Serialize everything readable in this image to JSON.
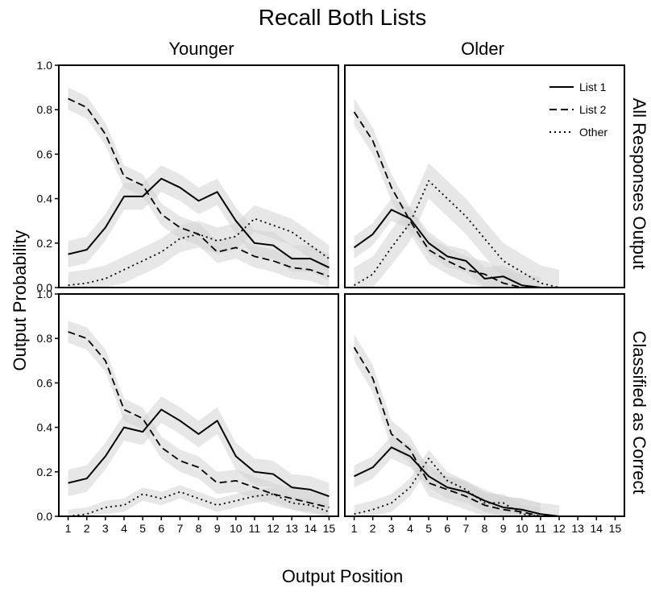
{
  "title": "Recall Both Lists",
  "xlabel": "Output Position",
  "ylabel": "Output Probability",
  "columns": [
    "Younger",
    "Older"
  ],
  "rows": [
    "All Responses Output",
    "Classified as Correct"
  ],
  "legend": {
    "placement": "top-right",
    "items": [
      {
        "name": "List 1",
        "dash": "solid"
      },
      {
        "name": "List 2",
        "dash": "dashed"
      },
      {
        "name": "Other",
        "dash": "dotted"
      }
    ]
  },
  "colors": {
    "line": "#000000",
    "band": "#d3d3d3"
  },
  "chart_data": {
    "type": "line",
    "x": [
      1,
      2,
      3,
      4,
      5,
      6,
      7,
      8,
      9,
      10,
      11,
      12,
      13,
      14,
      15
    ],
    "ylim": [
      0,
      1
    ],
    "yticks": [
      "0.0",
      "0.2",
      "0.4",
      "0.6",
      "0.8",
      "1.0"
    ],
    "xticks": [
      "1",
      "2",
      "3",
      "4",
      "5",
      "6",
      "7",
      "8",
      "9",
      "10",
      "11",
      "12",
      "13",
      "14",
      "15"
    ],
    "grid": false,
    "panels": [
      {
        "row": "All Responses Output",
        "col": "Younger",
        "series": [
          {
            "name": "List 1",
            "values": [
              0.15,
              0.17,
              0.27,
              0.41,
              0.41,
              0.49,
              0.45,
              0.39,
              0.43,
              0.3,
              0.2,
              0.19,
              0.13,
              0.13,
              0.09
            ],
            "band": 0.06
          },
          {
            "name": "List 2",
            "values": [
              0.85,
              0.81,
              0.69,
              0.5,
              0.46,
              0.33,
              0.27,
              0.24,
              0.16,
              0.18,
              0.14,
              0.12,
              0.09,
              0.08,
              0.05
            ],
            "band": 0.05
          },
          {
            "name": "Other",
            "values": [
              0.01,
              0.02,
              0.04,
              0.08,
              0.12,
              0.16,
              0.22,
              0.24,
              0.21,
              0.23,
              0.31,
              0.28,
              0.25,
              0.19,
              0.13
            ],
            "band": 0.06
          }
        ]
      },
      {
        "row": "All Responses Output",
        "col": "Older",
        "series": [
          {
            "name": "List 1",
            "values": [
              0.18,
              0.24,
              0.35,
              0.31,
              0.2,
              0.14,
              0.12,
              0.04,
              0.05,
              0.01,
              0.0,
              null,
              null,
              null,
              null
            ],
            "band": 0.05
          },
          {
            "name": "List 2",
            "values": [
              0.79,
              0.66,
              0.45,
              0.3,
              0.17,
              0.12,
              0.08,
              0.06,
              0.02,
              0.0,
              null,
              null,
              null,
              null,
              null
            ],
            "band": 0.06
          },
          {
            "name": "Other",
            "values": [
              0.01,
              0.06,
              0.18,
              0.29,
              0.48,
              0.4,
              0.32,
              0.22,
              0.12,
              0.07,
              0.02,
              0.0,
              null,
              null,
              null
            ],
            "band": 0.08
          }
        ]
      },
      {
        "row": "Classified as Correct",
        "col": "Younger",
        "series": [
          {
            "name": "List 1",
            "values": [
              0.15,
              0.17,
              0.27,
              0.4,
              0.38,
              0.48,
              0.43,
              0.37,
              0.43,
              0.27,
              0.2,
              0.19,
              0.13,
              0.12,
              0.09
            ],
            "band": 0.06
          },
          {
            "name": "List 2",
            "values": [
              0.83,
              0.8,
              0.7,
              0.48,
              0.44,
              0.31,
              0.25,
              0.22,
              0.15,
              0.16,
              0.13,
              0.1,
              0.08,
              0.06,
              0.04
            ],
            "band": 0.05
          },
          {
            "name": "Other",
            "values": [
              0.0,
              0.01,
              0.04,
              0.05,
              0.1,
              0.08,
              0.11,
              0.08,
              0.05,
              0.07,
              0.09,
              0.1,
              0.06,
              0.05,
              0.02
            ],
            "band": 0.03
          }
        ]
      },
      {
        "row": "Classified as Correct",
        "col": "Older",
        "series": [
          {
            "name": "List 1",
            "values": [
              0.18,
              0.22,
              0.31,
              0.27,
              0.18,
              0.13,
              0.11,
              0.07,
              0.04,
              0.03,
              0.01,
              0.0,
              null,
              null,
              null
            ],
            "band": 0.05
          },
          {
            "name": "List 2",
            "values": [
              0.76,
              0.62,
              0.37,
              0.3,
              0.15,
              0.12,
              0.09,
              0.05,
              0.03,
              0.02,
              0.0,
              null,
              null,
              null,
              null
            ],
            "band": 0.06
          },
          {
            "name": "Other",
            "values": [
              0.01,
              0.03,
              0.06,
              0.13,
              0.26,
              0.16,
              0.12,
              0.06,
              0.06,
              0.01,
              0.0,
              null,
              null,
              null,
              null
            ],
            "band": 0.04
          }
        ]
      }
    ]
  }
}
